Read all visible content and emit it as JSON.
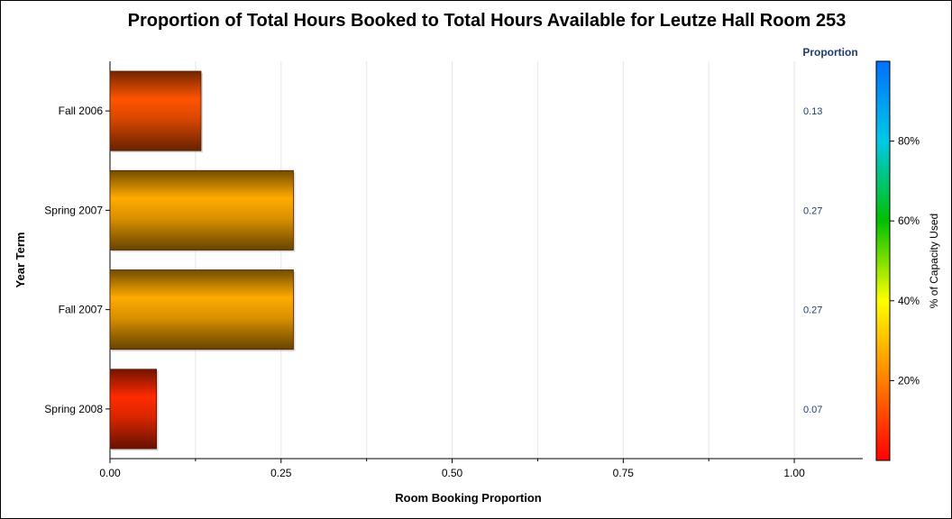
{
  "chart_data": {
    "type": "bar",
    "orientation": "horizontal",
    "title": "Proportion of Total Hours Booked to Total Hours Available for Leutze Hall Room 253",
    "xlabel": "Room Booking Proportion",
    "ylabel": "Year Term",
    "categories": [
      "Fall 2006",
      "Spring 2007",
      "Fall 2007",
      "Spring 2008"
    ],
    "values": [
      0.133,
      0.268,
      0.268,
      0.068
    ],
    "value_labels": [
      "0.13",
      "0.27",
      "0.27",
      "0.07"
    ],
    "value_column_header": "Proportion",
    "xlim": [
      0,
      1.1
    ],
    "xticks": [
      0,
      0.25,
      0.5,
      0.75,
      1.0
    ],
    "xtick_labels": [
      "0.00",
      "0.25",
      "0.50",
      "0.75",
      "1.00"
    ],
    "grid": "vertical",
    "colorbar": {
      "label": "% of Capacity Used",
      "range": [
        0,
        1
      ],
      "ticks": [
        0.2,
        0.4,
        0.6,
        0.8
      ],
      "tick_labels": [
        "20%",
        "40%",
        "60%",
        "80%"
      ],
      "placement": "right",
      "colors": [
        "#ff0000",
        "#ff7f00",
        "#ffff00",
        "#00c000",
        "#00c8e6",
        "#0070ff"
      ]
    }
  }
}
